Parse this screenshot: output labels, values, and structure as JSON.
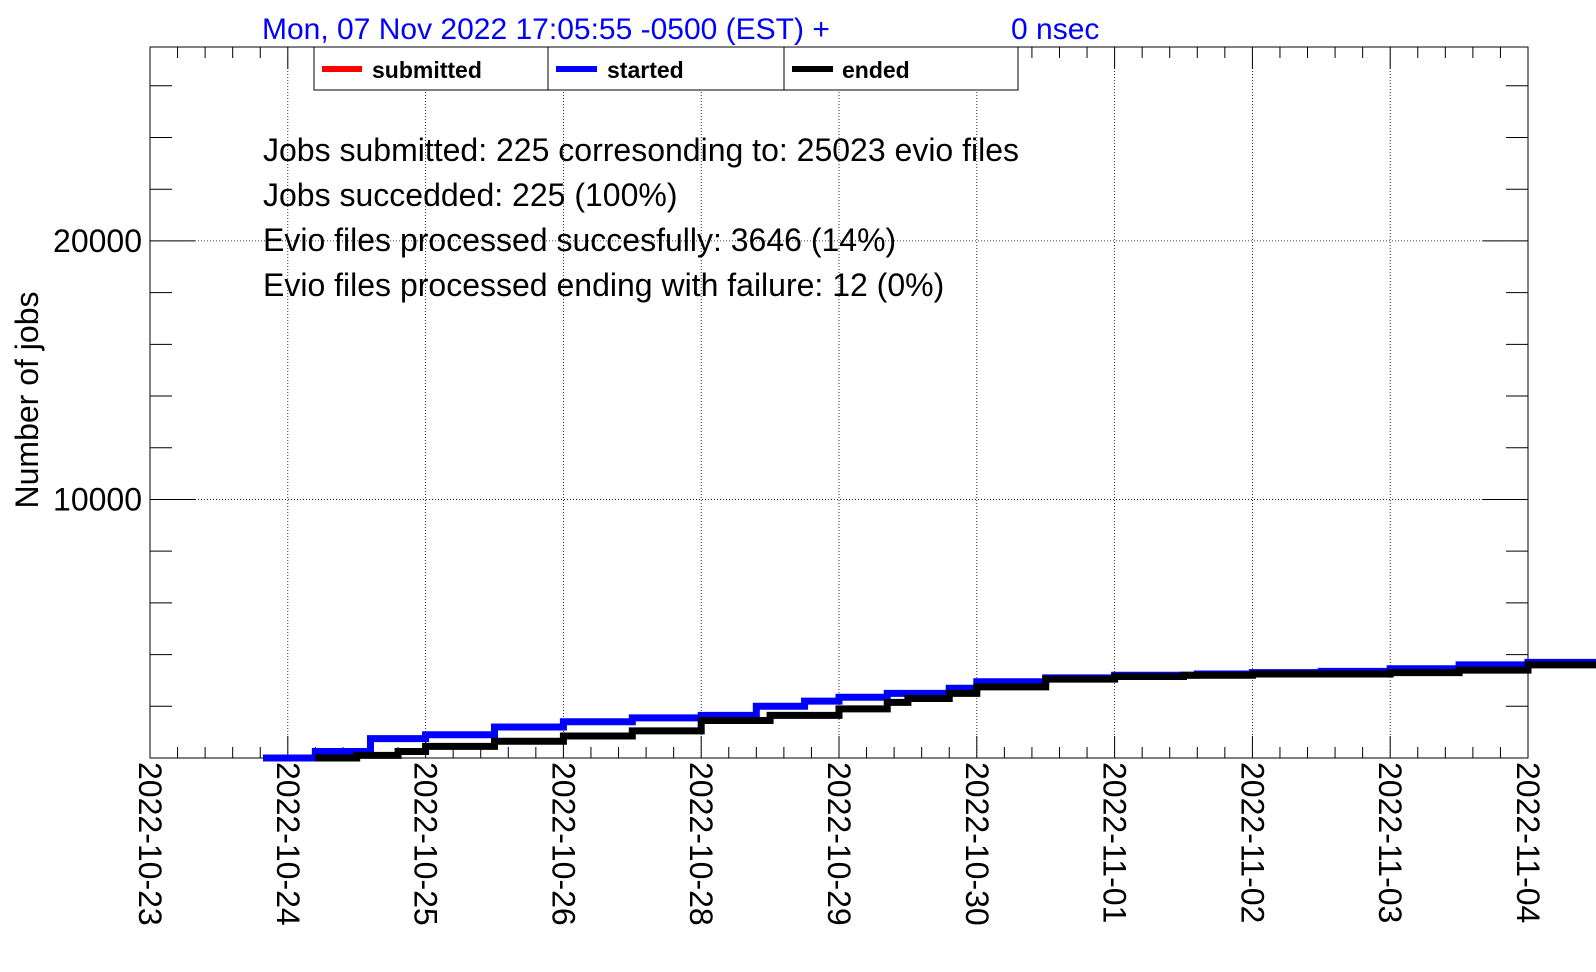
{
  "header": {
    "timestamp": "Mon, 07 Nov 2022 17:05:55 -0500 (EST) +",
    "nsec": "0 nsec",
    "color": "#0000ff"
  },
  "legend": {
    "items": [
      {
        "label": "submitted",
        "color": "#ff0000"
      },
      {
        "label": "started",
        "color": "#0000ff"
      },
      {
        "label": "ended",
        "color": "#000000"
      }
    ]
  },
  "stats": {
    "line1": "Jobs submitted: 225 corresonding to: 25023 evio files",
    "line2": "Jobs succedded: 225 (100%)",
    "line3": "Evio files processed succesfully: 3646 (14%)",
    "line4": "Evio files processed ending with failure: 12 (0%)"
  },
  "chart_data": {
    "type": "line",
    "xlabel": "",
    "ylabel": "Number of jobs",
    "ylim": [
      0,
      27500
    ],
    "xlim": [
      "2022-10-23",
      "2022-11-04"
    ],
    "x_tick_labels": [
      "2022-10-23",
      "2022-10-24",
      "2022-10-25",
      "2022-10-26",
      "2022-10-28",
      "2022-10-29",
      "2022-10-30",
      "2022-11-01",
      "2022-11-02",
      "2022-11-03",
      "2022-11-04"
    ],
    "y_tick_labels": [
      "10000",
      "20000"
    ],
    "y_tick_values": [
      10000,
      20000
    ],
    "grid": true,
    "legend_position": "top",
    "series": [
      {
        "name": "started",
        "color": "#0000ff",
        "x": [
          0.82,
          1.2,
          1.6,
          2.0,
          2.5,
          3.0,
          3.5,
          4.0,
          4.4,
          4.75,
          5.0,
          5.35,
          5.8,
          6.0,
          6.5,
          7.0,
          7.6,
          8.0,
          8.5,
          9.0,
          9.5,
          10.0,
          10.6
        ],
        "y": [
          0,
          250,
          750,
          900,
          1200,
          1400,
          1550,
          1650,
          2000,
          2200,
          2350,
          2500,
          2700,
          2950,
          3100,
          3200,
          3250,
          3300,
          3350,
          3450,
          3600,
          3700,
          3700
        ]
      },
      {
        "name": "ended",
        "color": "#000000",
        "x": [
          1.2,
          1.5,
          1.8,
          2.0,
          2.5,
          3.0,
          3.5,
          4.0,
          4.5,
          5.0,
          5.35,
          5.5,
          5.8,
          6.0,
          6.5,
          7.0,
          7.5,
          8.0,
          8.5,
          9.0,
          9.5,
          10.0,
          10.6
        ],
        "y": [
          0,
          100,
          250,
          450,
          650,
          850,
          1050,
          1450,
          1650,
          1900,
          2150,
          2300,
          2500,
          2750,
          3050,
          3150,
          3200,
          3250,
          3250,
          3300,
          3400,
          3600,
          3650
        ]
      },
      {
        "name": "submitted",
        "color": "#ff0000",
        "x": [],
        "y": []
      }
    ]
  }
}
